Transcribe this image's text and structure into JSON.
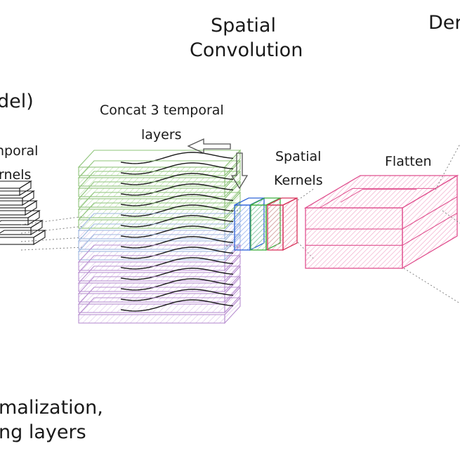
{
  "labels": {
    "spatial_conv_line1": "Spatial",
    "spatial_conv_line2": "Convolution",
    "dense_partial": "Der",
    "model_partial": "del)",
    "temporal_kernels_line1": "nporal",
    "temporal_kernels_line2": "rnels",
    "concat_line1": "Concat 3 temporal",
    "concat_line2": "layers",
    "spatial_kernels_line1": "Spatial",
    "spatial_kernels_line2": "Kernels",
    "flatten": "Flatten",
    "bottom_line1": "malization,",
    "bottom_line2": "ng layers"
  },
  "colors": {
    "ink": "#1a1a1a",
    "grey": "#9a9a9a",
    "green": "#8fc47a",
    "blue_light": "#9fb8e0",
    "purple": "#b88fd0",
    "kernel_blue": "#2f63d8",
    "kernel_green": "#3fae3f",
    "kernel_red": "#d8345c",
    "magenta": "#e0508f"
  }
}
